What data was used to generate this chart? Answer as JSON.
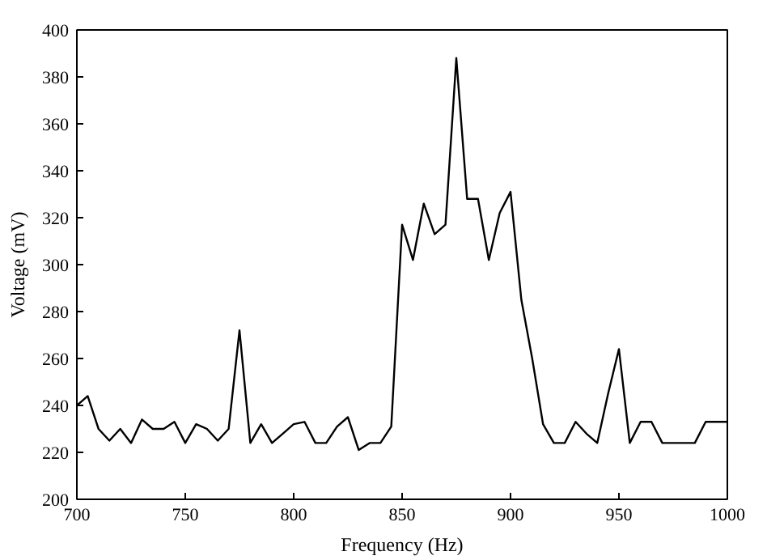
{
  "chart_data": {
    "type": "line",
    "xlabel": "Frequency (Hz)",
    "ylabel": "Voltage (mV)",
    "x": [
      700,
      705,
      710,
      715,
      720,
      725,
      730,
      735,
      740,
      745,
      750,
      755,
      760,
      765,
      770,
      775,
      780,
      785,
      790,
      795,
      800,
      805,
      810,
      815,
      820,
      825,
      830,
      835,
      840,
      845,
      850,
      855,
      860,
      865,
      870,
      875,
      880,
      885,
      890,
      895,
      900,
      905,
      910,
      915,
      920,
      925,
      930,
      935,
      940,
      945,
      950,
      955,
      960,
      965,
      970,
      975,
      980,
      985,
      990,
      995,
      1000
    ],
    "series": [
      {
        "color": "#000000",
        "values": [
          240,
          244,
          230,
          225,
          230,
          224,
          234,
          230,
          230,
          233,
          224,
          232,
          230,
          225,
          230,
          272,
          224,
          232,
          224,
          228,
          232,
          233,
          224,
          224,
          231,
          235,
          221,
          224,
          224,
          231,
          317,
          302,
          326,
          313,
          317,
          388,
          328,
          328,
          302,
          322,
          331,
          285,
          260,
          232,
          224,
          224,
          233,
          228,
          224,
          245,
          264,
          224,
          233,
          233,
          224,
          224,
          224,
          224,
          233,
          233,
          233
        ]
      }
    ],
    "xlim": [
      700,
      1000
    ],
    "ylim": [
      200,
      400
    ],
    "xticks": [
      700,
      750,
      800,
      850,
      900,
      950,
      1000
    ],
    "yticks": [
      200,
      220,
      240,
      260,
      280,
      300,
      320,
      340,
      360,
      380,
      400
    ],
    "grid": false,
    "marker": "none",
    "line_style": "solid"
  }
}
